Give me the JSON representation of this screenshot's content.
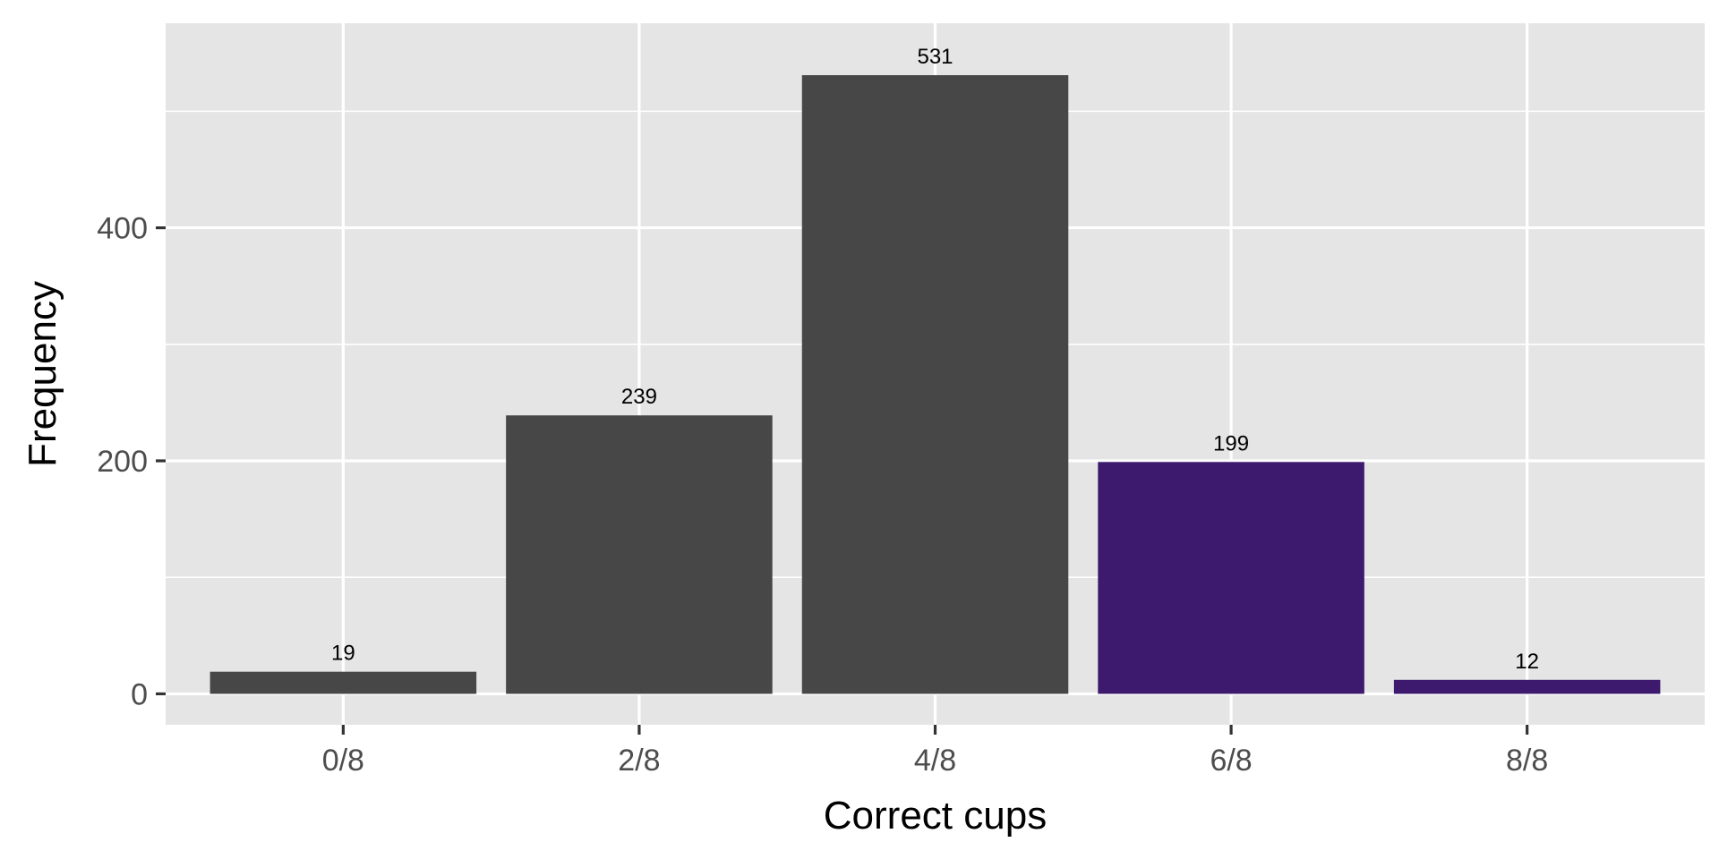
{
  "chart_data": {
    "type": "bar",
    "categories": [
      "0/8",
      "2/8",
      "4/8",
      "6/8",
      "8/8"
    ],
    "values": [
      19,
      239,
      531,
      199,
      12
    ],
    "data_labels": [
      "19",
      "239",
      "531",
      "199",
      "12"
    ],
    "bar_colors": [
      "#474747",
      "#474747",
      "#474747",
      "#3d1a6e",
      "#3d1a6e"
    ],
    "xlabel": "Correct cups",
    "ylabel": "Frequency",
    "yticks": [
      0,
      200,
      400
    ],
    "yticks_labels": [
      "0",
      "200",
      "400"
    ],
    "ylim": [
      -26.55,
      575.55
    ],
    "grid": true,
    "panel_background": "#e5e5e5",
    "grid_color": "#ffffff",
    "legend": "none"
  }
}
